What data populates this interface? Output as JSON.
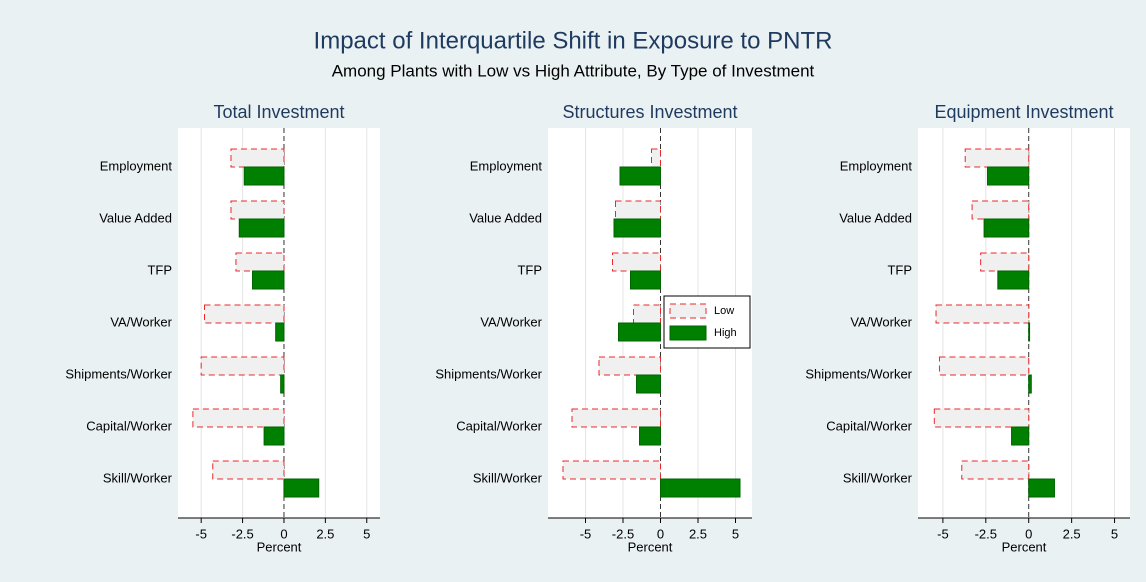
{
  "title": "Impact of Interquartile Shift in Exposure to PNTR",
  "subtitle": "Among Plants with Low vs High Attribute, By Type of Investment",
  "chart_data": [
    {
      "type": "bar",
      "orientation": "horizontal",
      "title": "Total Investment",
      "xlabel": "Percent",
      "categories": [
        "Employment",
        "Value Added",
        "TFP",
        "VA/Worker",
        "Shipments/Worker",
        "Capital/Worker",
        "Skill/Worker"
      ],
      "series": [
        {
          "name": "Low",
          "color": "#e8282b",
          "values": [
            -3.2,
            -3.2,
            -2.9,
            -4.8,
            -5.0,
            -5.5,
            -4.3
          ]
        },
        {
          "name": "High",
          "color": "#008000",
          "values": [
            -2.4,
            -2.7,
            -1.9,
            -0.5,
            -0.2,
            -1.2,
            2.1
          ]
        }
      ],
      "xlim": [
        -6.4,
        5.8
      ],
      "xticks": [
        -5,
        -2.5,
        0,
        2.5,
        5
      ],
      "grid": true,
      "legend": false
    },
    {
      "type": "bar",
      "orientation": "horizontal",
      "title": "Structures Investment",
      "xlabel": "Percent",
      "categories": [
        "Employment",
        "Value Added",
        "TFP",
        "VA/Worker",
        "Shipments/Worker",
        "Capital/Worker",
        "Skill/Worker"
      ],
      "series": [
        {
          "name": "Low",
          "color": "#e8282b",
          "values": [
            -0.6,
            -3.0,
            -3.2,
            -1.8,
            -4.1,
            -5.9,
            -6.5
          ]
        },
        {
          "name": "High",
          "color": "#008000",
          "values": [
            -2.7,
            -3.1,
            -2.0,
            -2.8,
            -1.6,
            -1.4,
            5.3
          ]
        }
      ],
      "xlim": [
        -7.5,
        6.1
      ],
      "xticks": [
        -5,
        -2.5,
        0,
        2.5,
        5
      ],
      "grid": true,
      "legend": true
    },
    {
      "type": "bar",
      "orientation": "horizontal",
      "title": "Equipment Investment",
      "xlabel": "Percent",
      "categories": [
        "Employment",
        "Value Added",
        "TFP",
        "VA/Worker",
        "Shipments/Worker",
        "Capital/Worker",
        "Skill/Worker"
      ],
      "series": [
        {
          "name": "Low",
          "color": "#e8282b",
          "values": [
            -3.7,
            -3.3,
            -2.8,
            -5.4,
            -5.2,
            -5.5,
            -3.9
          ]
        },
        {
          "name": "High",
          "color": "#008000",
          "values": [
            -2.4,
            -2.6,
            -1.8,
            0.05,
            0.15,
            -1.0,
            1.5
          ]
        }
      ],
      "xlim": [
        -6.45,
        5.9
      ],
      "xticks": [
        -5,
        -2.5,
        0,
        2.5,
        5
      ],
      "grid": true,
      "legend": false
    }
  ]
}
